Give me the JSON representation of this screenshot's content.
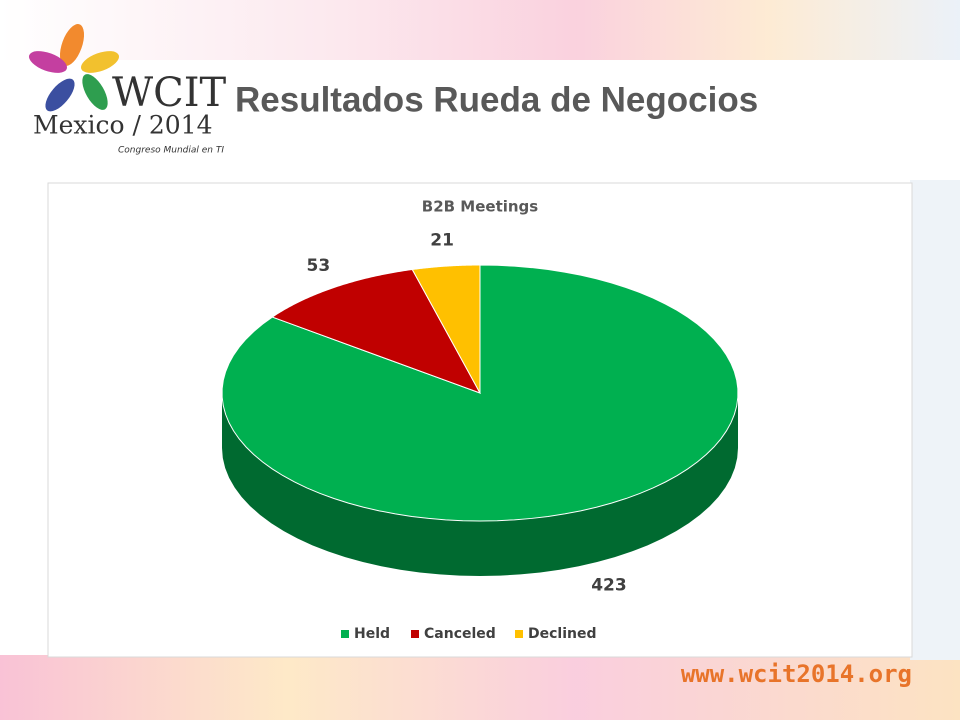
{
  "slide": {
    "title": "Resultados Rueda de Negocios",
    "logo_name": "WCIT",
    "logo_place": "Mexico / 2014",
    "logo_tagline": "Congreso Mundial en TI",
    "url": "www.wcit2014.org"
  },
  "chart_data": {
    "type": "pie",
    "title": "B2B Meetings",
    "categories": [
      "Held",
      "Canceled",
      "Declined"
    ],
    "values": [
      423,
      53,
      21
    ],
    "colors": [
      "#00b050",
      "#c00000",
      "#ffc000"
    ],
    "legend": "bottom"
  }
}
